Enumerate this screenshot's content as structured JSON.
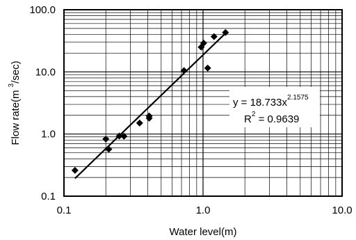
{
  "chart_data": {
    "type": "scatter",
    "x_scale": "log",
    "y_scale": "log",
    "xlim": [
      0.1,
      10.0
    ],
    "ylim": [
      0.1,
      100.0
    ],
    "x_ticks": [
      "0.1",
      "1.0",
      "10.0"
    ],
    "y_ticks": [
      "0.1",
      "1.0",
      "10.0",
      "100.0"
    ],
    "xlabel": "Water level(m)",
    "ylabel": "Flow rate(m",
    "ylabel_sup": "3",
    "ylabel_tail": "/sec)",
    "grid": true,
    "series": [
      {
        "points": [
          [
            0.12,
            0.26
          ],
          [
            0.2,
            0.83
          ],
          [
            0.21,
            0.57
          ],
          [
            0.25,
            0.93
          ],
          [
            0.27,
            0.92
          ],
          [
            0.35,
            1.5
          ],
          [
            0.41,
            1.8
          ],
          [
            0.41,
            1.95
          ],
          [
            0.73,
            10.5
          ],
          [
            0.97,
            25.0
          ],
          [
            1.01,
            29.0
          ],
          [
            1.08,
            11.5
          ],
          [
            1.2,
            37.0
          ],
          [
            1.45,
            43.0
          ]
        ]
      }
    ],
    "trendline": {
      "a": 18.733,
      "b": 2.1575,
      "x_range": [
        0.12,
        1.45
      ],
      "equation_base": "y = 18.733x",
      "equation_exp": "2.1575",
      "r2_base": "R",
      "r2_sup": "2",
      "r2_tail": " = 0.9639"
    }
  }
}
